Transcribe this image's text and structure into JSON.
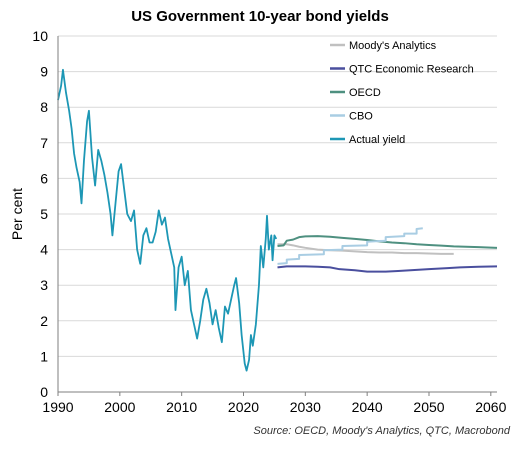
{
  "chart_data": {
    "type": "line",
    "title": "US Government 10-year bond yields",
    "source": "Source: OECD, Moody's Analytics, QTC, Macrobond",
    "ylabel": "Per cent",
    "xlabel": "",
    "xlim": [
      1990,
      2061
    ],
    "ylim": [
      0,
      10
    ],
    "x_ticks": [
      1990,
      2000,
      2010,
      2020,
      2030,
      2040,
      2050,
      2060
    ],
    "y_ticks": [
      0,
      1,
      2,
      3,
      4,
      5,
      6,
      7,
      8,
      9,
      10
    ],
    "grid": "horizontal",
    "legend_position": "top-right",
    "series": [
      {
        "name": "Moody's Analytics",
        "color": "#c0c0c0",
        "points": [
          [
            2025.5,
            4.15
          ],
          [
            2027,
            4.15
          ],
          [
            2028,
            4.12
          ],
          [
            2029,
            4.08
          ],
          [
            2030,
            4.05
          ],
          [
            2032,
            4.0
          ],
          [
            2034,
            3.98
          ],
          [
            2036,
            3.97
          ],
          [
            2038,
            3.95
          ],
          [
            2040,
            3.93
          ],
          [
            2042,
            3.92
          ],
          [
            2044,
            3.92
          ],
          [
            2046,
            3.9
          ],
          [
            2048,
            3.9
          ],
          [
            2050,
            3.89
          ],
          [
            2052,
            3.88
          ],
          [
            2054,
            3.88
          ]
        ]
      },
      {
        "name": "QTC Economic Research",
        "color": "#4a4f9e",
        "points": [
          [
            2025.5,
            3.5
          ],
          [
            2027,
            3.53
          ],
          [
            2030,
            3.53
          ],
          [
            2032,
            3.52
          ],
          [
            2034,
            3.5
          ],
          [
            2035.5,
            3.45
          ],
          [
            2038,
            3.42
          ],
          [
            2040,
            3.38
          ],
          [
            2043,
            3.38
          ],
          [
            2045,
            3.4
          ],
          [
            2047,
            3.42
          ],
          [
            2050,
            3.45
          ],
          [
            2053,
            3.48
          ],
          [
            2055,
            3.5
          ],
          [
            2058,
            3.52
          ],
          [
            2061,
            3.53
          ]
        ]
      },
      {
        "name": "OECD",
        "color": "#4e9080",
        "points": [
          [
            2025.5,
            4.1
          ],
          [
            2026.5,
            4.12
          ],
          [
            2027,
            4.25
          ],
          [
            2028,
            4.28
          ],
          [
            2029,
            4.35
          ],
          [
            2030,
            4.37
          ],
          [
            2032,
            4.38
          ],
          [
            2034,
            4.36
          ],
          [
            2036,
            4.33
          ],
          [
            2038,
            4.3
          ],
          [
            2040,
            4.27
          ],
          [
            2042,
            4.23
          ],
          [
            2044,
            4.2
          ],
          [
            2046,
            4.18
          ],
          [
            2048,
            4.15
          ],
          [
            2050,
            4.13
          ],
          [
            2052,
            4.11
          ],
          [
            2054,
            4.09
          ],
          [
            2056,
            4.08
          ],
          [
            2058,
            4.07
          ],
          [
            2061,
            4.05
          ]
        ]
      },
      {
        "name": "CBO",
        "color": "#a9cde3",
        "points": [
          [
            2025.5,
            3.6
          ],
          [
            2027,
            3.62
          ],
          [
            2027,
            3.72
          ],
          [
            2029,
            3.74
          ],
          [
            2029,
            3.85
          ],
          [
            2033,
            3.87
          ],
          [
            2033,
            3.98
          ],
          [
            2036,
            4.0
          ],
          [
            2036,
            4.1
          ],
          [
            2040,
            4.12
          ],
          [
            2040,
            4.22
          ],
          [
            2043,
            4.25
          ],
          [
            2043,
            4.35
          ],
          [
            2046,
            4.38
          ],
          [
            2046,
            4.45
          ],
          [
            2048,
            4.45
          ],
          [
            2048,
            4.58
          ],
          [
            2049,
            4.6
          ]
        ]
      },
      {
        "name": "Actual yield",
        "color": "#1d97b5",
        "points": [
          [
            1990,
            8.2
          ],
          [
            1990.5,
            8.6
          ],
          [
            1990.8,
            9.05
          ],
          [
            1991.3,
            8.4
          ],
          [
            1991.8,
            7.9
          ],
          [
            1992.2,
            7.4
          ],
          [
            1992.6,
            6.7
          ],
          [
            1993,
            6.3
          ],
          [
            1993.5,
            5.9
          ],
          [
            1993.8,
            5.3
          ],
          [
            1994.2,
            6.5
          ],
          [
            1994.7,
            7.6
          ],
          [
            1995,
            7.9
          ],
          [
            1995.5,
            6.6
          ],
          [
            1996,
            5.8
          ],
          [
            1996.5,
            6.8
          ],
          [
            1997,
            6.5
          ],
          [
            1997.5,
            6.1
          ],
          [
            1998,
            5.6
          ],
          [
            1998.5,
            5.0
          ],
          [
            1998.8,
            4.4
          ],
          [
            1999.3,
            5.3
          ],
          [
            1999.8,
            6.2
          ],
          [
            2000.2,
            6.4
          ],
          [
            2000.7,
            5.7
          ],
          [
            2001.2,
            5.0
          ],
          [
            2001.8,
            4.8
          ],
          [
            2002.3,
            5.1
          ],
          [
            2002.8,
            4.0
          ],
          [
            2003.3,
            3.6
          ],
          [
            2003.8,
            4.4
          ],
          [
            2004.3,
            4.6
          ],
          [
            2004.8,
            4.2
          ],
          [
            2005.3,
            4.2
          ],
          [
            2005.8,
            4.5
          ],
          [
            2006.3,
            5.1
          ],
          [
            2006.8,
            4.7
          ],
          [
            2007.3,
            4.9
          ],
          [
            2007.8,
            4.3
          ],
          [
            2008.3,
            3.9
          ],
          [
            2008.8,
            3.5
          ],
          [
            2009,
            2.3
          ],
          [
            2009.5,
            3.5
          ],
          [
            2010,
            3.8
          ],
          [
            2010.5,
            3.0
          ],
          [
            2011,
            3.4
          ],
          [
            2011.5,
            2.3
          ],
          [
            2012,
            1.9
          ],
          [
            2012.5,
            1.5
          ],
          [
            2013,
            2.0
          ],
          [
            2013.5,
            2.6
          ],
          [
            2014,
            2.9
          ],
          [
            2014.5,
            2.5
          ],
          [
            2015,
            1.9
          ],
          [
            2015.5,
            2.3
          ],
          [
            2016,
            1.8
          ],
          [
            2016.5,
            1.4
          ],
          [
            2017,
            2.4
          ],
          [
            2017.5,
            2.2
          ],
          [
            2018,
            2.6
          ],
          [
            2018.5,
            3.0
          ],
          [
            2018.8,
            3.2
          ],
          [
            2019.3,
            2.5
          ],
          [
            2019.7,
            1.6
          ],
          [
            2020.2,
            0.8
          ],
          [
            2020.5,
            0.6
          ],
          [
            2020.9,
            0.9
          ],
          [
            2021.2,
            1.6
          ],
          [
            2021.5,
            1.3
          ],
          [
            2022,
            1.9
          ],
          [
            2022.5,
            3.0
          ],
          [
            2022.8,
            4.1
          ],
          [
            2023.2,
            3.5
          ],
          [
            2023.6,
            4.3
          ],
          [
            2023.8,
            4.95
          ],
          [
            2024.1,
            4.0
          ],
          [
            2024.5,
            4.4
          ],
          [
            2024.7,
            3.7
          ],
          [
            2025,
            4.4
          ],
          [
            2025.3,
            4.3
          ]
        ]
      }
    ]
  }
}
